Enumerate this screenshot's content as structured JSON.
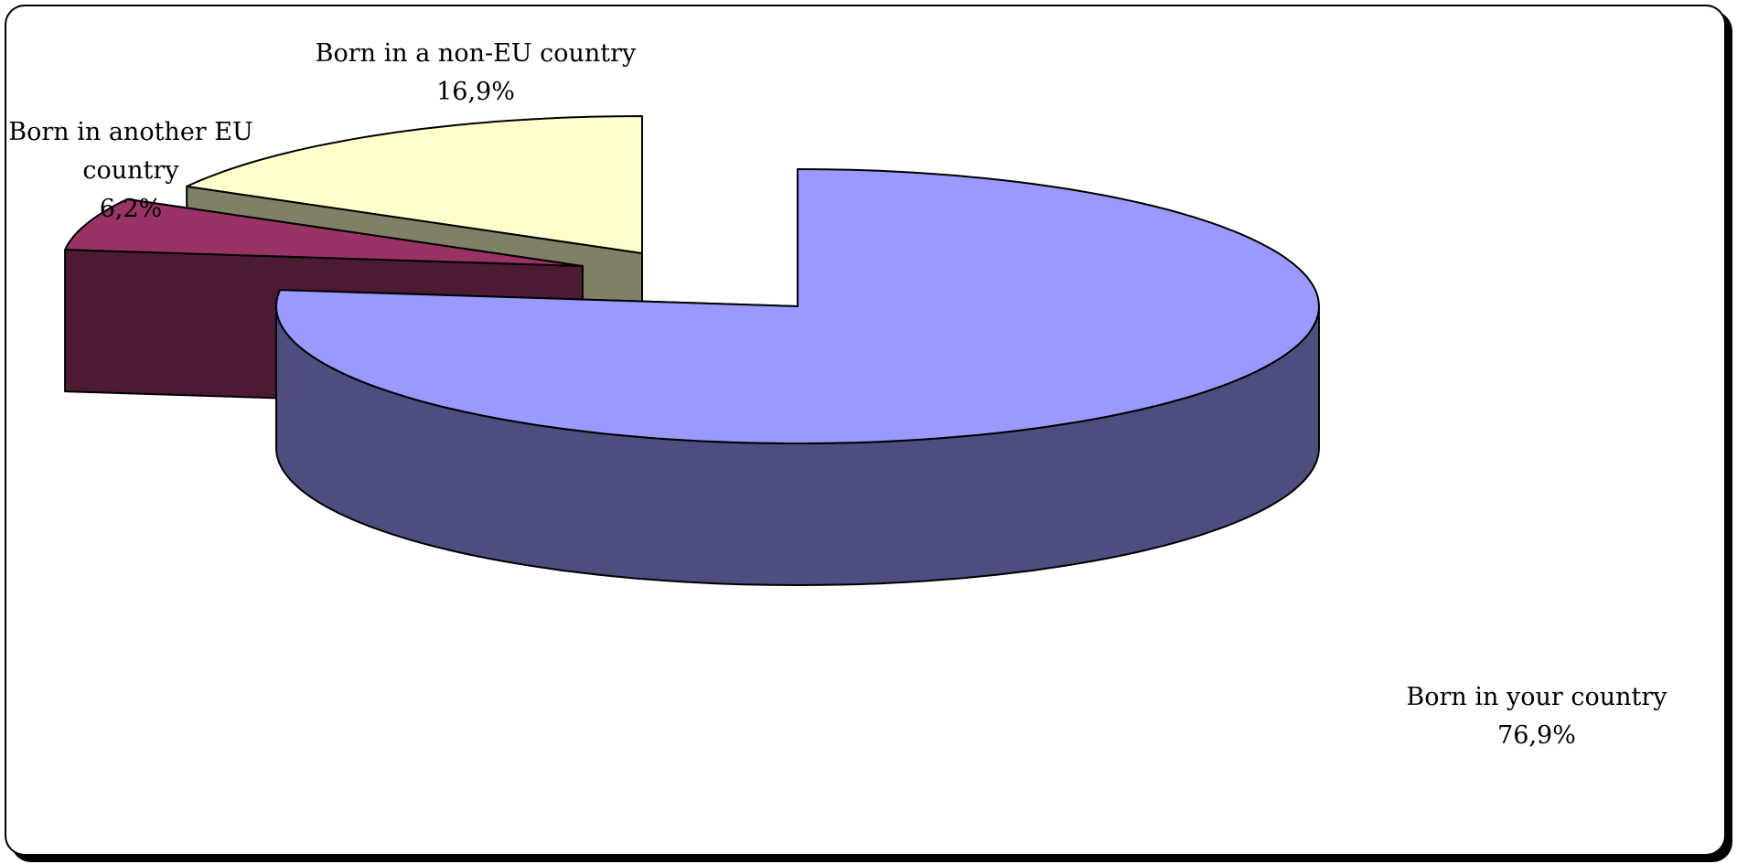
{
  "chart_data": {
    "type": "pie",
    "style": "3d-exploded",
    "legend": "none",
    "slices": [
      {
        "label": "Born in your country",
        "value": 76.9,
        "value_label": "76,9%",
        "top_color": "#9999ff",
        "side_color": "#4d4d80"
      },
      {
        "label": "Born in another EU country",
        "value": 6.2,
        "value_label": "6,2%",
        "top_color": "#993366",
        "side_color": "#4d1a33"
      },
      {
        "label": "Born in a non-EU country",
        "value": 16.9,
        "value_label": "16,9%",
        "top_color": "#ffffcc",
        "side_color": "#808066"
      }
    ]
  }
}
